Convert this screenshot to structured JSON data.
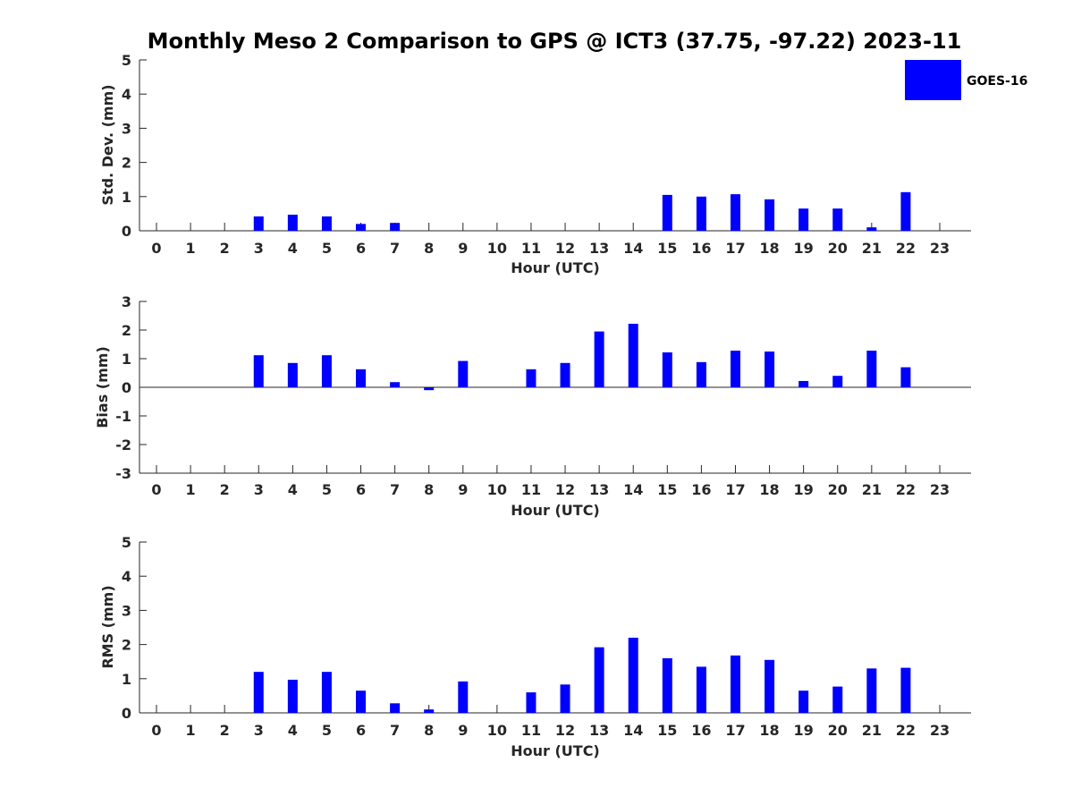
{
  "title": "Monthly Meso 2 Comparison to GPS @ ICT3 (37.75, -97.22) 2023-11",
  "legend": {
    "label": "GOES-16",
    "color": "#0000ff"
  },
  "chart_data": [
    {
      "type": "bar",
      "xlabel": "Hour (UTC)",
      "ylabel": "Std. Dev. (mm)",
      "ylim": [
        0,
        5
      ],
      "yticks": [
        "0",
        "1",
        "2",
        "3",
        "4",
        "5"
      ],
      "categories": [
        "0",
        "1",
        "2",
        "3",
        "4",
        "5",
        "6",
        "7",
        "8",
        "9",
        "10",
        "11",
        "12",
        "13",
        "14",
        "15",
        "16",
        "17",
        "18",
        "19",
        "20",
        "21",
        "22",
        "23"
      ],
      "series": [
        {
          "name": "GOES-16",
          "values": [
            null,
            null,
            null,
            0.42,
            0.47,
            0.42,
            0.2,
            0.23,
            null,
            null,
            null,
            null,
            null,
            null,
            null,
            1.05,
            1.0,
            1.07,
            0.92,
            0.65,
            0.65,
            0.1,
            1.13,
            null
          ]
        }
      ],
      "color": "#0000ff",
      "legend_position": "top-right"
    },
    {
      "type": "bar",
      "xlabel": "Hour (UTC)",
      "ylabel": "Bias (mm)",
      "ylim": [
        -3,
        3
      ],
      "yticks": [
        "-3",
        "-2",
        "-1",
        "0",
        "1",
        "2",
        "3"
      ],
      "zero_line": true,
      "categories": [
        "0",
        "1",
        "2",
        "3",
        "4",
        "5",
        "6",
        "7",
        "8",
        "9",
        "10",
        "11",
        "12",
        "13",
        "14",
        "15",
        "16",
        "17",
        "18",
        "19",
        "20",
        "21",
        "22",
        "23"
      ],
      "series": [
        {
          "name": "GOES-16",
          "values": [
            null,
            null,
            null,
            1.12,
            0.85,
            1.12,
            0.63,
            0.18,
            -0.1,
            0.92,
            null,
            0.63,
            0.85,
            1.95,
            2.22,
            1.22,
            0.88,
            1.28,
            1.25,
            0.22,
            0.4,
            1.28,
            0.7,
            null
          ]
        }
      ],
      "color": "#0000ff"
    },
    {
      "type": "bar",
      "xlabel": "Hour (UTC)",
      "ylabel": "RMS (mm)",
      "ylim": [
        0,
        5
      ],
      "yticks": [
        "0",
        "1",
        "2",
        "3",
        "4",
        "5"
      ],
      "categories": [
        "0",
        "1",
        "2",
        "3",
        "4",
        "5",
        "6",
        "7",
        "8",
        "9",
        "10",
        "11",
        "12",
        "13",
        "14",
        "15",
        "16",
        "17",
        "18",
        "19",
        "20",
        "21",
        "22",
        "23"
      ],
      "series": [
        {
          "name": "GOES-16",
          "values": [
            null,
            null,
            null,
            1.2,
            0.97,
            1.2,
            0.65,
            0.28,
            0.1,
            0.92,
            null,
            0.6,
            0.83,
            1.92,
            2.2,
            1.6,
            1.35,
            1.68,
            1.55,
            0.65,
            0.77,
            1.3,
            1.32,
            null
          ]
        }
      ],
      "color": "#0000ff"
    }
  ]
}
